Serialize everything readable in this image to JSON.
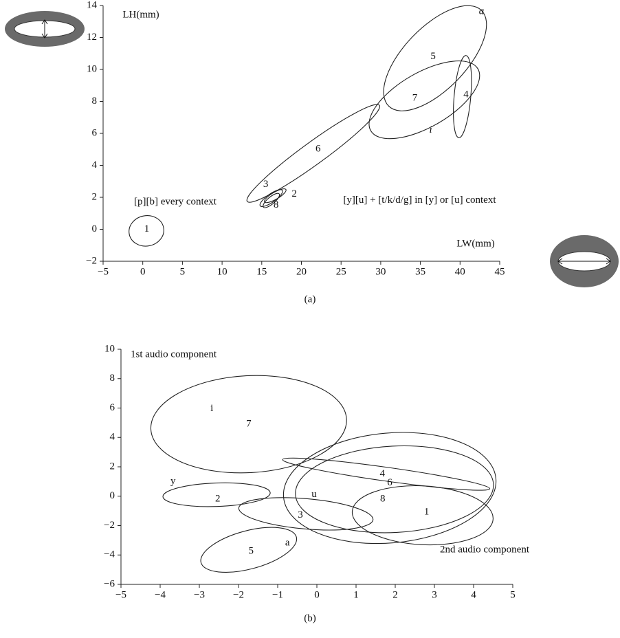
{
  "chart_data": [
    {
      "type": "ellipse",
      "caption": "(a)",
      "xlabel": "LW(mm)",
      "ylabel": "LH(mm)",
      "xlim": [
        -5,
        45
      ],
      "ylim": [
        -2,
        14
      ],
      "xticks": [
        {
          "value": -5,
          "label": "−5"
        },
        0,
        5,
        10,
        15,
        20,
        25,
        30,
        35,
        40,
        45
      ],
      "yticks": [
        {
          "value": -2,
          "label": "−2"
        },
        0,
        2,
        4,
        6,
        8,
        10,
        12,
        14
      ],
      "ellipses": [
        {
          "cx": 0.46,
          "cy": -0.1,
          "rx": 2.2,
          "ry": 0.95,
          "angle": 10
        },
        {
          "cx": 21.5,
          "cy": 4.75,
          "rx": 10.3,
          "ry": 0.7,
          "angle": 36
        },
        {
          "cx": 36.85,
          "cy": 10.7,
          "rx": 8.4,
          "ry": 1.95,
          "angle": 46
        },
        {
          "cx": 35.5,
          "cy": 8.1,
          "rx": 7.8,
          "ry": 1.7,
          "angle": 30
        },
        {
          "cx": 40.3,
          "cy": 8.3,
          "rx": 5.2,
          "ry": 0.52,
          "angle": 85
        },
        {
          "cx": 16.2,
          "cy": 1.95,
          "rx": 1.7,
          "ry": 0.26,
          "angle": 35
        },
        {
          "cx": 16.7,
          "cy": 2.1,
          "rx": 1.56,
          "ry": 0.22,
          "angle": 30
        },
        {
          "cx": 16.2,
          "cy": 1.8,
          "rx": 1.3,
          "ry": 0.22,
          "angle": 40
        }
      ],
      "labels": [
        {
          "text": "1",
          "x": 0.5,
          "y": 0
        },
        {
          "text": "6",
          "x": 22.1,
          "y": 5
        },
        {
          "text": "3",
          "x": 15.5,
          "y": 2.8
        },
        {
          "text": "2",
          "x": 19.1,
          "y": 2.2
        },
        {
          "text": "8",
          "x": 16.8,
          "y": 1.5
        },
        {
          "text": "5",
          "x": 36.6,
          "y": 10.8
        },
        {
          "text": "7",
          "x": 34.3,
          "y": 8.2
        },
        {
          "text": "4",
          "x": 40.75,
          "y": 8.4
        },
        {
          "text": "a",
          "x": 42.7,
          "y": 13.6,
          "style": "italic"
        },
        {
          "text": "i",
          "x": 36.3,
          "y": 6.2,
          "style": "italic"
        },
        {
          "text": "[p][b] every context",
          "x": 4.1,
          "y": 1.7
        },
        {
          "text": "[y][u] + [t/k/d/g] in [y] or [u] context",
          "x": 34.9,
          "y": 1.8
        }
      ]
    },
    {
      "type": "ellipse",
      "caption": "(b)",
      "xlabel": "2nd audio component",
      "ylabel": "1st audio component",
      "xlim": [
        -5,
        5
      ],
      "ylim": [
        -6,
        10
      ],
      "xticks": [
        {
          "value": -5,
          "label": "−5"
        },
        {
          "value": -4,
          "label": "−4"
        },
        {
          "value": -3,
          "label": "−3"
        },
        {
          "value": -2,
          "label": "−2"
        },
        {
          "value": -1,
          "label": "−1"
        },
        0,
        1,
        2,
        3,
        4,
        5
      ],
      "yticks": [
        {
          "value": -6,
          "label": "−6"
        },
        {
          "value": -4,
          "label": "−4"
        },
        {
          "value": -2,
          "label": "−2"
        },
        0,
        2,
        4,
        6,
        8,
        10
      ],
      "ellipses": [
        {
          "cx": -1.74,
          "cy": 4.9,
          "rx": 2.5,
          "ry": 3.3,
          "angle": 3
        },
        {
          "cx": -2.56,
          "cy": 0.1,
          "rx": 1.37,
          "ry": 0.8,
          "angle": 2
        },
        {
          "cx": -0.28,
          "cy": -1.2,
          "rx": 1.72,
          "ry": 1.03,
          "angle": -5
        },
        {
          "cx": -1.74,
          "cy": -3.65,
          "rx": 1.26,
          "ry": 1.3,
          "angle": 15
        },
        {
          "cx": 1.77,
          "cy": 1.5,
          "rx": 2.67,
          "ry": 0.47,
          "angle": -8
        },
        {
          "cx": 1.86,
          "cy": 0.56,
          "rx": 2.72,
          "ry": 3.74,
          "angle": 5
        },
        {
          "cx": 1.98,
          "cy": 0.47,
          "rx": 2.53,
          "ry": 2.94,
          "angle": 3
        },
        {
          "cx": 2.7,
          "cy": -1.3,
          "rx": 1.8,
          "ry": 2.0,
          "angle": -3
        }
      ],
      "labels": [
        {
          "text": "i",
          "x": -2.68,
          "y": 5.94
        },
        {
          "text": "7",
          "x": -1.74,
          "y": 4.9
        },
        {
          "text": "y",
          "x": -3.67,
          "y": 1.0
        },
        {
          "text": "2",
          "x": -2.53,
          "y": -0.2
        },
        {
          "text": "u",
          "x": -0.07,
          "y": 0.1
        },
        {
          "text": "3",
          "x": -0.42,
          "y": -1.3
        },
        {
          "text": "a",
          "x": -0.75,
          "y": -3.2
        },
        {
          "text": "5",
          "x": -1.68,
          "y": -3.75
        },
        {
          "text": "4",
          "x": 1.67,
          "y": 1.5
        },
        {
          "text": "6",
          "x": 1.86,
          "y": 0.9
        },
        {
          "text": "8",
          "x": 1.68,
          "y": -0.2
        },
        {
          "text": "1",
          "x": 2.8,
          "y": -1.1
        }
      ]
    }
  ]
}
